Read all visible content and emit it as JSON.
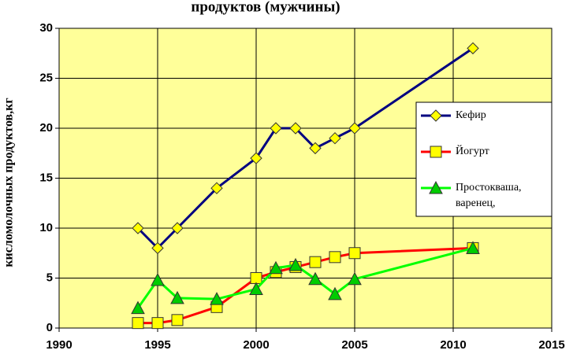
{
  "chart_data": {
    "type": "line",
    "title": "продуктов (мужчины)",
    "y_label": "кисломолочных продуктов,кг",
    "x": [
      1994,
      1995,
      1996,
      1998,
      2000,
      2001,
      2002,
      2003,
      2004,
      2005,
      2011
    ],
    "series": [
      {
        "name": "Кефир",
        "color": "#000080",
        "marker": "diamond",
        "values": [
          10,
          8,
          10,
          14,
          17,
          20,
          20,
          18,
          19,
          20,
          28
        ]
      },
      {
        "name": "Йогурт",
        "color": "#ff0000",
        "marker": "square",
        "values": [
          0.5,
          0.5,
          0.8,
          2.1,
          5,
          5.6,
          6.1,
          6.6,
          7.1,
          7.5,
          8
        ]
      },
      {
        "name": "Простокваша, варенец,",
        "color": "#00ff00",
        "marker": "triangle",
        "values": [
          2,
          4.8,
          3,
          2.9,
          3.9,
          6,
          6.3,
          4.9,
          3.4,
          4.9,
          8
        ]
      }
    ],
    "xlim": [
      1990,
      2015
    ],
    "xticks": [
      1990,
      1995,
      2000,
      2005,
      2010,
      2015
    ],
    "ylim": [
      0,
      30
    ],
    "yticks": [
      0,
      5,
      10,
      15,
      20,
      25,
      30
    ],
    "grid": true,
    "legend": "right"
  }
}
